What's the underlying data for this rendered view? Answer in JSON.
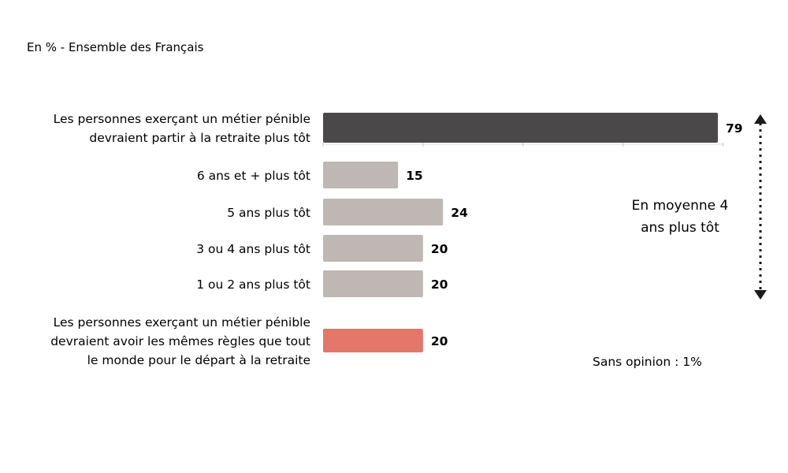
{
  "chart_data": {
    "type": "bar",
    "orientation": "horizontal",
    "subtitle": "En % - Ensemble des Français",
    "categories": [
      [
        "Les personnes exerçant un métier pénible",
        "devraient partir à la retraite plus tôt"
      ],
      [
        "6 ans et + plus tôt"
      ],
      [
        "5 ans plus tôt"
      ],
      [
        "3 ou 4 ans plus tôt"
      ],
      [
        "1 ou 2 ans plus tôt"
      ],
      [
        "Les personnes exerçant un métier pénible",
        "devraient avoir les mêmes règles que tout",
        "le monde pour le départ à la retraite"
      ]
    ],
    "values": [
      79,
      15,
      24,
      20,
      20,
      20
    ],
    "value_labels": [
      "79",
      "15",
      "24",
      "20",
      "20",
      "20"
    ],
    "bar_colors": [
      "#4a4848",
      "#bfb7b3",
      "#bfb7b3",
      "#bfb7b3",
      "#bfb7b3",
      "#e5766a"
    ],
    "xlim": [
      0,
      80
    ],
    "grid": false,
    "annotation": [
      "En moyenne 4",
      "ans plus tôt"
    ],
    "footnote": "Sans opinion : 1%"
  }
}
